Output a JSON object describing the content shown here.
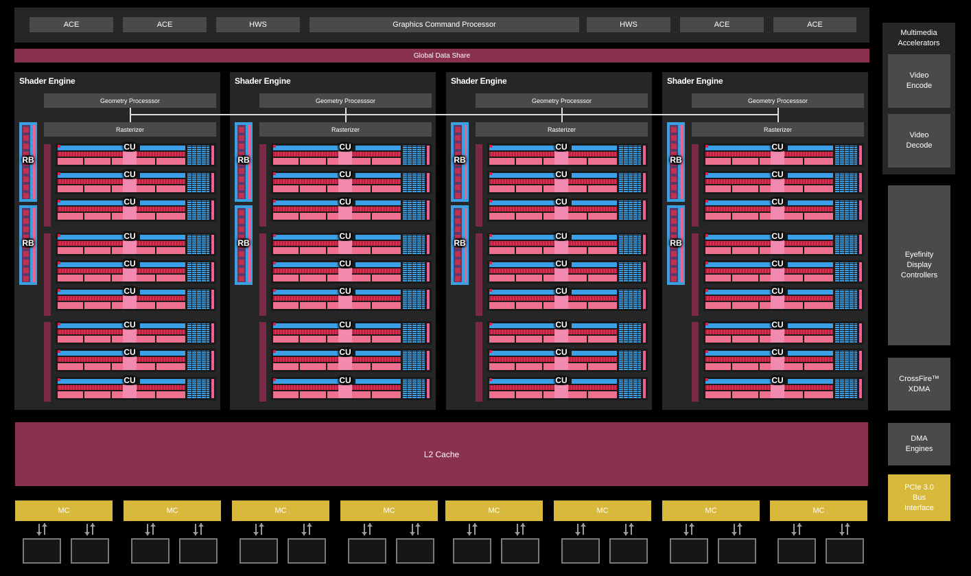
{
  "top": {
    "buttons": [
      "ACE",
      "ACE",
      "HWS",
      "Graphics Command Processor",
      "HWS",
      "ACE",
      "ACE"
    ],
    "global_data_share": "Global Data Share"
  },
  "shader_engines": [
    {
      "title": "Shader Engine",
      "geometry": "Geometry Processsor",
      "rasterizer": "Rasterizer",
      "rb": [
        "RB",
        "RB"
      ],
      "cu": [
        "CU",
        "CU",
        "CU",
        "CU",
        "CU",
        "CU",
        "CU",
        "CU",
        "CU"
      ]
    },
    {
      "title": "Shader Engine",
      "geometry": "Geometry Processsor",
      "rasterizer": "Rasterizer",
      "rb": [
        "RB",
        "RB"
      ],
      "cu": [
        "CU",
        "CU",
        "CU",
        "CU",
        "CU",
        "CU",
        "CU",
        "CU",
        "CU"
      ]
    },
    {
      "title": "Shader Engine",
      "geometry": "Geometry Processsor",
      "rasterizer": "Rasterizer",
      "rb": [
        "RB",
        "RB"
      ],
      "cu": [
        "CU",
        "CU",
        "CU",
        "CU",
        "CU",
        "CU",
        "CU",
        "CU",
        "CU"
      ]
    },
    {
      "title": "Shader Engine",
      "geometry": "Geometry Processsor",
      "rasterizer": "Rasterizer",
      "rb": [
        "RB",
        "RB"
      ],
      "cu": [
        "CU",
        "CU",
        "CU",
        "CU",
        "CU",
        "CU",
        "CU",
        "CU",
        "CU"
      ]
    }
  ],
  "l2_cache": "L2 Cache",
  "memory_controllers": [
    "MC",
    "MC",
    "MC",
    "MC",
    "MC",
    "MC",
    "MC",
    "MC"
  ],
  "right_panel": {
    "multimedia_title": "Multimedia Accelerators",
    "video_encode": "Video Encode",
    "video_decode": "Video Decode",
    "eyefinity": "Eyefinity Display Controllers",
    "crossfire": "CrossFire™ XDMA",
    "dma": "DMA Engines",
    "pcie": "PCIe 3.0 Bus Interface"
  },
  "colors": {
    "panel": "#262626",
    "block": "#4a4a4c",
    "accent_magenta": "#8a3050",
    "cu_blue": "#3ca0e8",
    "cu_pink": "#f07090",
    "mc_gold": "#d9b93c"
  }
}
